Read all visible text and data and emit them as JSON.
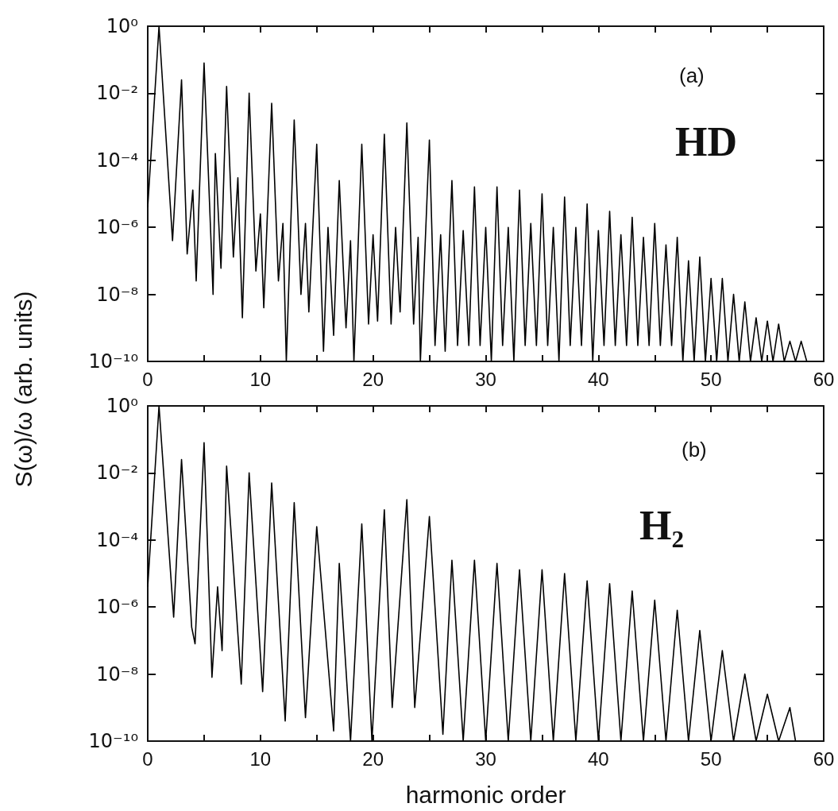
{
  "chart_data": [
    {
      "type": "line",
      "ylabel": "S(ω)/ω (arb. units)",
      "annotations": [
        "(a)",
        "HD"
      ],
      "log": "y",
      "marker": "none",
      "line_style": "solid",
      "xlim": [
        0,
        60
      ],
      "xticks": [
        0,
        {
          "value": 5,
          "label": null
        },
        10,
        {
          "value": 15,
          "label": null
        },
        20,
        {
          "value": 25,
          "label": null
        },
        30,
        {
          "value": 35,
          "label": null
        },
        40,
        {
          "value": 45,
          "label": null
        },
        50,
        {
          "value": 55,
          "label": null
        },
        60
      ],
      "ylim": [
        1e-10,
        1
      ],
      "yticks": [
        {
          "value": 1e-10,
          "label": "10⁻¹⁰"
        },
        {
          "value": 1e-08,
          "label": "10⁻⁸"
        },
        {
          "value": 1e-06,
          "label": "10⁻⁶"
        },
        {
          "value": 0.0001,
          "label": "10⁻⁴"
        },
        {
          "value": 0.01,
          "label": "10⁻²"
        },
        {
          "value": 1,
          "label": "10⁰"
        }
      ],
      "series": [
        {
          "color": "#000000",
          "x": [
            0,
            1,
            2.2,
            3,
            3.5,
            4,
            4.3,
            5,
            5.8,
            6,
            6.5,
            7,
            7.6,
            8,
            8.4,
            9,
            9.6,
            10,
            10.3,
            11,
            11.6,
            12,
            12.3,
            13,
            13.6,
            14,
            14.3,
            15,
            15.6,
            16,
            16.5,
            17,
            17.6,
            18,
            18.3,
            19,
            19.6,
            20,
            20.4,
            21,
            21.6,
            22,
            22.4,
            23,
            23.6,
            24,
            24.2,
            25,
            25.5,
            26,
            26.4,
            27,
            27.5,
            28,
            28.5,
            29,
            29.5,
            30,
            30.5,
            31,
            31.5,
            32,
            32.5,
            33,
            33.5,
            34,
            34.5,
            35,
            35.5,
            36,
            36.5,
            37,
            37.5,
            38,
            38.5,
            39,
            39.5,
            40,
            40.5,
            41,
            41.5,
            42,
            42.5,
            43,
            43.5,
            44,
            44.5,
            45,
            45.5,
            46,
            46.5,
            47,
            47.5,
            48,
            48.5,
            49,
            49.5,
            50,
            50.5,
            51,
            51.5,
            52,
            52.5,
            53,
            53.5,
            54,
            54.5,
            55,
            55.5,
            56,
            56.5,
            57,
            57.5,
            58,
            58.5
          ],
          "values": [
            4e-06,
            1,
            4e-07,
            0.025,
            1.6e-07,
            1.3e-05,
            2.5e-08,
            0.08,
            1e-08,
            0.00016,
            6e-08,
            0.016,
            1.3e-07,
            3e-05,
            2e-09,
            0.01,
            5e-08,
            2.5e-06,
            4e-09,
            0.005,
            2.5e-08,
            1.3e-06,
            1e-10,
            0.0016,
            1e-08,
            1.3e-06,
            3e-09,
            0.0003,
            2e-10,
            1e-06,
            6e-10,
            2.5e-05,
            1e-09,
            4e-07,
            1e-10,
            0.0003,
            1.3e-09,
            6e-07,
            1.6e-09,
            0.0006,
            1.3e-09,
            1e-06,
            3e-09,
            0.0013,
            1.3e-09,
            5e-07,
            1e-10,
            0.0004,
            3e-10,
            6e-07,
            2e-10,
            2.5e-05,
            3e-10,
            8e-07,
            3e-10,
            1.6e-05,
            3e-10,
            1e-06,
            1e-10,
            1.6e-05,
            3e-10,
            1e-06,
            1e-10,
            1.3e-05,
            3e-10,
            1.3e-06,
            3e-10,
            1e-05,
            3e-10,
            1e-06,
            1e-10,
            8e-06,
            3e-10,
            1e-06,
            3e-10,
            5e-06,
            1e-10,
            8e-07,
            3e-10,
            3e-06,
            3e-10,
            6e-07,
            3e-10,
            2e-06,
            3e-10,
            5e-07,
            3e-10,
            1.3e-06,
            3e-10,
            3e-07,
            3e-10,
            5e-07,
            1e-10,
            1e-07,
            1e-10,
            1.3e-07,
            1e-10,
            3e-08,
            1e-10,
            3e-08,
            1e-10,
            1e-08,
            1e-10,
            6e-09,
            1e-10,
            2e-09,
            1e-10,
            1.6e-09,
            1e-10,
            1.3e-09,
            1e-10,
            4e-10,
            1e-10,
            4e-10,
            1e-10
          ]
        }
      ]
    },
    {
      "type": "line",
      "xlabel": "harmonic order",
      "annotations": [
        "(b)",
        "H₂"
      ],
      "log": "y",
      "marker": "none",
      "line_style": "solid",
      "xlim": [
        0,
        60
      ],
      "xticks": [
        0,
        {
          "value": 5,
          "label": null
        },
        10,
        {
          "value": 15,
          "label": null
        },
        20,
        {
          "value": 25,
          "label": null
        },
        30,
        {
          "value": 35,
          "label": null
        },
        40,
        {
          "value": 45,
          "label": null
        },
        50,
        {
          "value": 55,
          "label": null
        },
        60
      ],
      "ylim": [
        1e-10,
        1
      ],
      "yticks": [
        {
          "value": 1e-10,
          "label": "10⁻¹⁰"
        },
        {
          "value": 1e-08,
          "label": "10⁻⁸"
        },
        {
          "value": 1e-06,
          "label": "10⁻⁶"
        },
        {
          "value": 0.0001,
          "label": "10⁻⁴"
        },
        {
          "value": 0.01,
          "label": "10⁻²"
        },
        {
          "value": 1,
          "label": "10⁰"
        }
      ],
      "series": [
        {
          "color": "#000000",
          "x": [
            0,
            1,
            2.3,
            3,
            3.9,
            4.2,
            5,
            5.7,
            6.2,
            6.6,
            7,
            8.3,
            9,
            10.2,
            11,
            12.2,
            13,
            14,
            15,
            16.5,
            17,
            18,
            19,
            19.9,
            21,
            21.7,
            23,
            23.7,
            25,
            26.2,
            27,
            28,
            29,
            30,
            31,
            32,
            33,
            34,
            35,
            36,
            37,
            38,
            39,
            40,
            41,
            42,
            43,
            44,
            45,
            46,
            47,
            48,
            49,
            50,
            51,
            52,
            53,
            54,
            55,
            56,
            57,
            57.5
          ],
          "values": [
            4e-06,
            1,
            5e-07,
            0.025,
            2.5e-07,
            8e-08,
            0.08,
            8e-09,
            4e-06,
            5e-08,
            0.016,
            5e-09,
            0.01,
            3e-09,
            0.005,
            4e-10,
            0.0013,
            5e-10,
            0.00025,
            2e-10,
            2e-05,
            1e-10,
            0.0003,
            1e-10,
            0.0008,
            1e-09,
            0.0016,
            1e-09,
            0.0005,
            1.6e-10,
            2.5e-05,
            1e-10,
            2.5e-05,
            1e-10,
            2e-05,
            1e-10,
            1.3e-05,
            1e-10,
            1.3e-05,
            1e-10,
            1e-05,
            1e-10,
            6e-06,
            1e-10,
            5e-06,
            1e-10,
            3e-06,
            1e-10,
            1.6e-06,
            1e-10,
            8e-07,
            1e-10,
            2e-07,
            1e-10,
            5e-08,
            1e-10,
            1e-08,
            1e-10,
            2.5e-09,
            1e-10,
            1e-09,
            1e-10
          ]
        }
      ]
    }
  ]
}
